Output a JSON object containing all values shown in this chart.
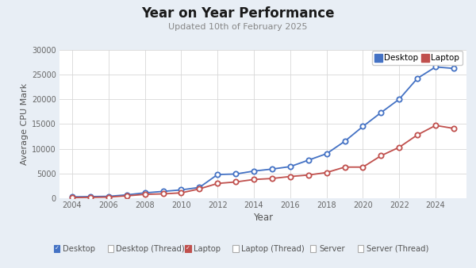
{
  "title": "Year on Year Performance",
  "subtitle": "Updated 10th of February 2025",
  "xlabel": "Year",
  "ylabel": "Average CPU Mark",
  "background_color": "#e8eef5",
  "plot_background": "#ffffff",
  "desktop_color": "#4472c4",
  "laptop_color": "#c0504d",
  "years": [
    2004,
    2005,
    2006,
    2007,
    2008,
    2009,
    2010,
    2011,
    2012,
    2013,
    2014,
    2015,
    2016,
    2017,
    2018,
    2019,
    2020,
    2021,
    2022,
    2023,
    2024,
    2025
  ],
  "desktop": [
    300,
    350,
    400,
    700,
    1100,
    1400,
    1700,
    2200,
    4800,
    4900,
    5500,
    5900,
    6400,
    7700,
    9000,
    11500,
    14500,
    17300,
    20000,
    24200,
    26500,
    26200
  ],
  "laptop": [
    150,
    200,
    250,
    500,
    800,
    900,
    1100,
    1900,
    3000,
    3300,
    3800,
    4000,
    4400,
    4700,
    5200,
    6300,
    6300,
    8600,
    10300,
    12800,
    14700,
    14100
  ],
  "ylim": [
    0,
    30000
  ],
  "yticks": [
    0,
    5000,
    10000,
    15000,
    20000,
    25000,
    30000
  ],
  "xticks": [
    2004,
    2006,
    2008,
    2010,
    2012,
    2014,
    2016,
    2018,
    2020,
    2022,
    2024
  ],
  "legend_labels_bottom": [
    "Desktop",
    "Desktop (Thread)",
    "Laptop",
    "Laptop (Thread)",
    "Server",
    "Server (Thread)"
  ],
  "bottom_legend_checked": [
    true,
    false,
    true,
    false,
    false,
    false
  ],
  "bottom_legend_colors": [
    "#4472c4",
    "#888888",
    "#c0504d",
    "#888888",
    "#888888",
    "#888888"
  ]
}
